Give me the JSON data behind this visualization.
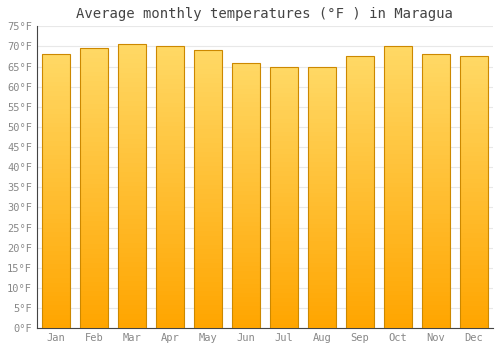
{
  "title": "Average monthly temperatures (°F ) in Maragua",
  "months": [
    "Jan",
    "Feb",
    "Mar",
    "Apr",
    "May",
    "Jun",
    "Jul",
    "Aug",
    "Sep",
    "Oct",
    "Nov",
    "Dec"
  ],
  "values": [
    68,
    69.5,
    70.5,
    70,
    69,
    66,
    65,
    65,
    67.5,
    70,
    68,
    67.5
  ],
  "ylim": [
    0,
    75
  ],
  "yticks": [
    0,
    5,
    10,
    15,
    20,
    25,
    30,
    35,
    40,
    45,
    50,
    55,
    60,
    65,
    70,
    75
  ],
  "bar_color_top": "#FFD966",
  "bar_color_bottom": "#FFA500",
  "bar_edge_color": "#CC8800",
  "background_color": "#ffffff",
  "plot_bg_color": "#ffffff",
  "grid_color": "#e8e8e8",
  "title_fontsize": 10,
  "tick_fontsize": 7.5,
  "title_font": "monospace",
  "tick_font": "monospace",
  "title_color": "#444444",
  "tick_color": "#888888"
}
